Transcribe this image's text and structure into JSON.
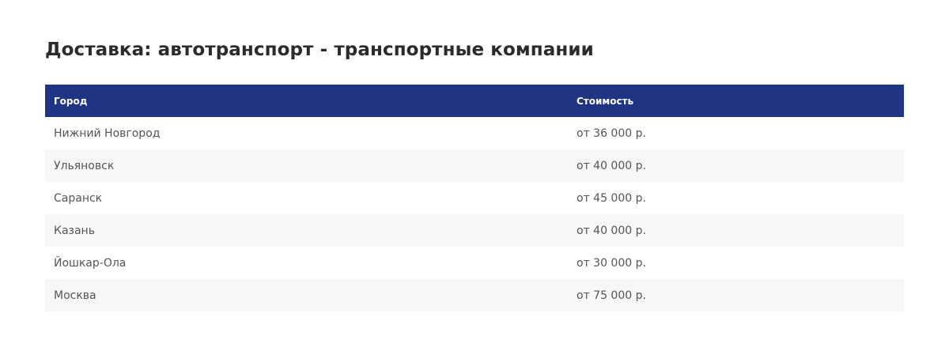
{
  "title": "Доставка: автотранспорт - транспортные компании",
  "table": {
    "headers": [
      "Город",
      "Стоимость"
    ],
    "rows": [
      [
        "Нижний Новгород",
        "от 36 000 р."
      ],
      [
        "Ульяновск",
        "от 40 000 р."
      ],
      [
        "Саранск",
        "от 45 000 р."
      ],
      [
        "Казань",
        "от 40 000 р."
      ],
      [
        "Йошкар-Ола",
        "от 30 000 р."
      ],
      [
        "Москва",
        "от 75 000 р."
      ]
    ]
  },
  "colors": {
    "header_bg": "#1f3584",
    "stripe": "#f7f7f7"
  }
}
